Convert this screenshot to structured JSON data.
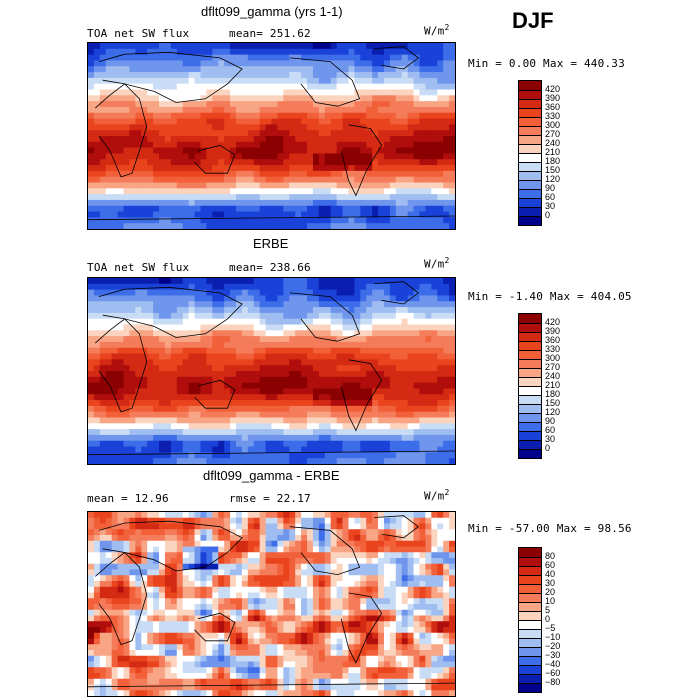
{
  "season": "DJF",
  "panels": [
    {
      "title": "dflt099_gamma (yrs 1-1)",
      "left_label": "TOA net SW flux",
      "mid_label": "mean= 251.62",
      "units": "W/m",
      "units_sup": "2",
      "minmax": "Min =    0.00 Max = 440.33",
      "colorbar": {
        "levels": [
          "420",
          "390",
          "360",
          "330",
          "300",
          "270",
          "240",
          "210",
          "180",
          "150",
          "120",
          "90",
          "60",
          "30",
          "0"
        ],
        "colors": [
          "#8b0000",
          "#b00d0d",
          "#d42a13",
          "#e9441d",
          "#f2603a",
          "#f57c5a",
          "#f8a585",
          "#fbd4bf",
          "#ffffff",
          "#c9dcf5",
          "#9fbdf0",
          "#6f96ec",
          "#3d6de8",
          "#1b42d8",
          "#0a1fb0",
          "#00008b"
        ]
      },
      "mode": "abs"
    },
    {
      "title": "ERBE",
      "left_label": "TOA net SW flux",
      "mid_label": "mean= 238.66",
      "units": "W/m",
      "units_sup": "2",
      "minmax": "Min =  -1.40 Max = 404.05",
      "colorbar": {
        "levels": [
          "420",
          "390",
          "360",
          "330",
          "300",
          "270",
          "240",
          "210",
          "180",
          "150",
          "120",
          "90",
          "60",
          "30",
          "0"
        ],
        "colors": [
          "#8b0000",
          "#b00d0d",
          "#d42a13",
          "#e9441d",
          "#f2603a",
          "#f57c5a",
          "#f8a585",
          "#fbd4bf",
          "#ffffff",
          "#c9dcf5",
          "#9fbdf0",
          "#6f96ec",
          "#3d6de8",
          "#1b42d8",
          "#0a1fb0",
          "#00008b"
        ]
      },
      "mode": "abs"
    },
    {
      "title": "dflt099_gamma - ERBE",
      "left_label": "mean =  12.96",
      "mid_label": "rmse =  22.17",
      "units": "W/m",
      "units_sup": "2",
      "minmax": "Min = -57.00 Max =  98.56",
      "colorbar": {
        "levels": [
          "80",
          "60",
          "40",
          "30",
          "20",
          "10",
          "5",
          "0",
          "−5",
          "−10",
          "−20",
          "−30",
          "−40",
          "−60",
          "−80"
        ],
        "colors": [
          "#8b0000",
          "#b00d0d",
          "#d42a13",
          "#e9441d",
          "#f2603a",
          "#f57c5a",
          "#f8a585",
          "#fbd4bf",
          "#ffffff",
          "#c9dcf5",
          "#9fbdf0",
          "#6f96ec",
          "#3d6de8",
          "#1b42d8",
          "#0a1fb0",
          "#00008b"
        ]
      },
      "mode": "diff"
    }
  ],
  "chart_data": {
    "type": "heatmap",
    "title": "DJF",
    "description_of_panels": [
      "dflt099_gamma (yrs 1-1)",
      "ERBE",
      "dflt099_gamma - ERBE"
    ],
    "series": [
      {
        "name": "dflt099_gamma (yrs 1-1)",
        "mean": 251.62,
        "min": 0.0,
        "max": 440.33
      },
      {
        "name": "ERBE",
        "mean": 238.66,
        "min": -1.4,
        "max": 404.05
      },
      {
        "name": "dflt099_gamma - ERBE",
        "mean": 12.96,
        "rmse": 22.17,
        "min": -57.0,
        "max": 98.56
      }
    ],
    "colorbar_levels_abs": [
      0,
      30,
      60,
      90,
      120,
      150,
      180,
      210,
      240,
      270,
      300,
      330,
      360,
      390,
      420
    ],
    "colorbar_levels_diff": [
      -80,
      -60,
      -40,
      -30,
      -20,
      -10,
      -5,
      0,
      5,
      10,
      20,
      30,
      40,
      60,
      80
    ]
  }
}
